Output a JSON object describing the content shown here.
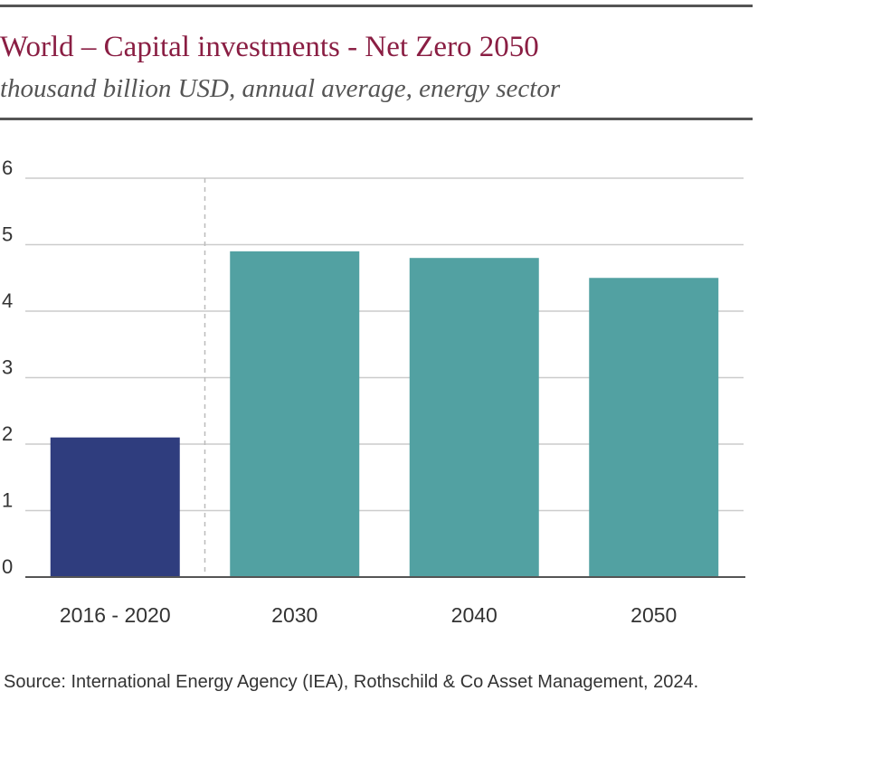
{
  "header": {
    "title": "World – Capital investments - Net Zero 2050",
    "subtitle": "thousand billion USD, annual average, energy sector"
  },
  "footer": {
    "source": "Source: International Energy Agency (IEA), Rothschild & Co Asset Management, 2024."
  },
  "colors": {
    "title": "#8a1e43",
    "historical_bar": "#2f3d7e",
    "projection_bar": "#52a1a2",
    "gridline": "#cccccc",
    "axis": "#555555"
  },
  "chart_data": {
    "type": "bar",
    "title": "World – Capital investments - Net Zero 2050",
    "subtitle": "thousand billion USD, annual average, energy sector",
    "xlabel": "",
    "ylabel": "",
    "categories": [
      "2016 - 2020",
      "2030",
      "2040",
      "2050"
    ],
    "values": [
      2.1,
      4.9,
      4.8,
      4.5
    ],
    "bar_groups": [
      "historical",
      "projection",
      "projection",
      "projection"
    ],
    "ylim": [
      0,
      6
    ],
    "yticks": [
      0,
      1,
      2,
      3,
      4,
      5,
      6
    ],
    "grid": true,
    "legend": "none",
    "separator_after_category": "2016 - 2020"
  }
}
